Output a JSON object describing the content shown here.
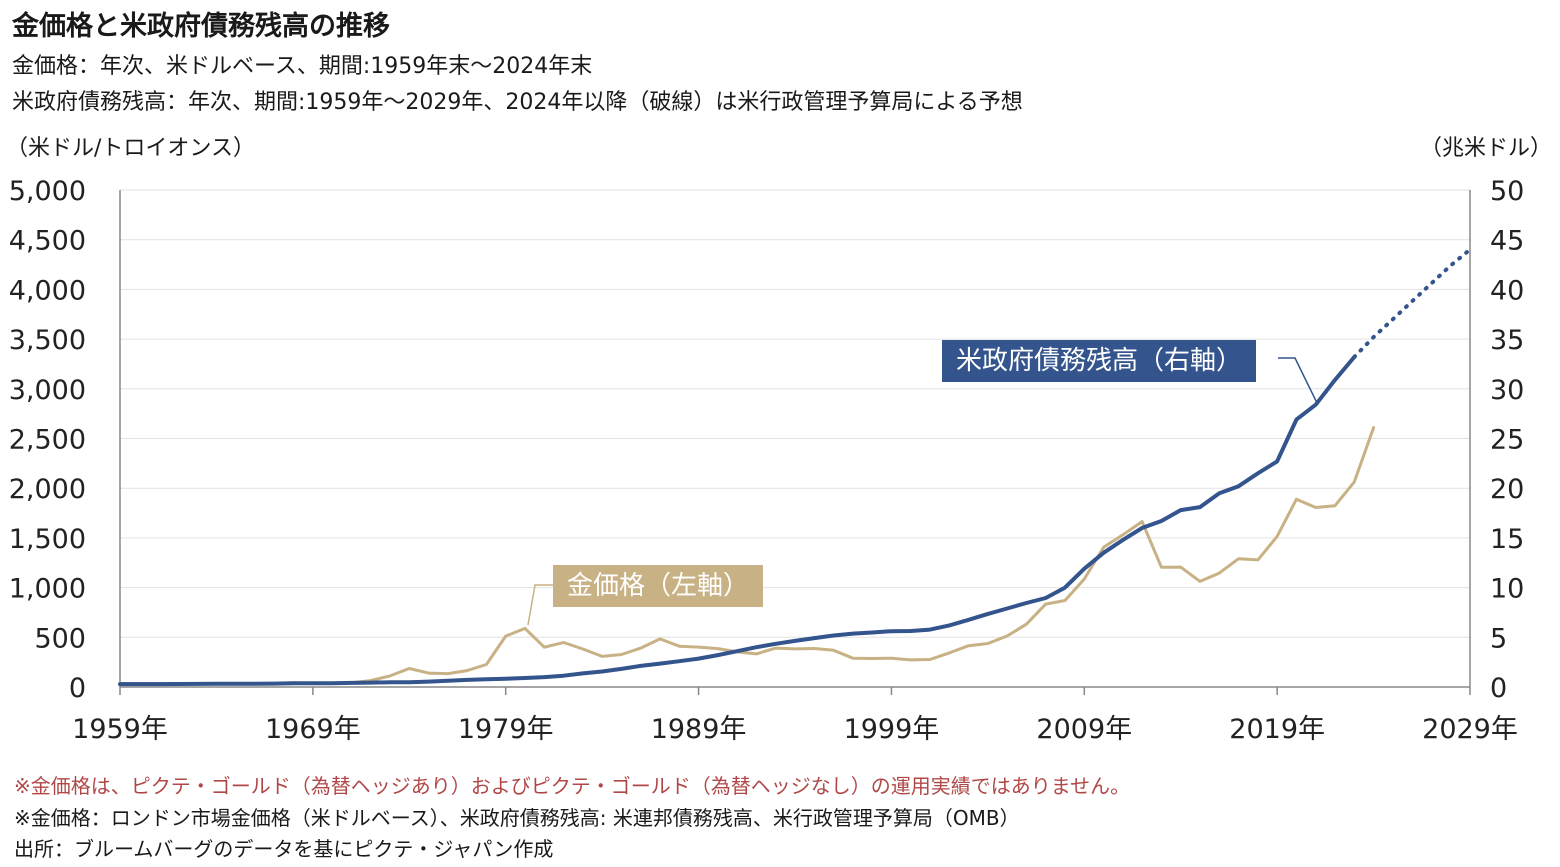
{
  "header": {
    "title": "金価格と米政府債務残高の推移",
    "subtitle_gold": "金価格：年次、米ドルベース、期間:1959年末～2024年末",
    "subtitle_debt": "米政府債務残高：年次、期間:1959年～2029年、2024年以降（破線）は米行政管理予算局による予想"
  },
  "axes": {
    "left_unit": "（米ドル/トロイオンス）",
    "right_unit": "（兆米ドル）"
  },
  "labels": {
    "debt": "米政府債務残高（右軸）",
    "gold": "金価格（左軸）"
  },
  "notes": {
    "disclaimer": "※金価格は、ピクテ・ゴールド（為替ヘッジあり）およびピクテ・ゴールド（為替ヘッジなし）の運用実績ではありません。",
    "sources": "※金価格：ロンドン市場金価格（米ドルベース）、米政府債務残高: 米連邦債務残高、米行政管理予算局（OMB）",
    "origin": "出所：ブルームバーグのデータを基にピクテ・ジャパン作成"
  },
  "chart_data": {
    "type": "line",
    "x_label_suffix": "年",
    "x_ticks": [
      1959,
      1969,
      1979,
      1989,
      1999,
      2009,
      2019,
      2029
    ],
    "xlim": [
      1959,
      2029
    ],
    "y_left": {
      "ylim": [
        0,
        5000
      ],
      "ticks": [
        "0",
        "500",
        "1,000",
        "1,500",
        "2,000",
        "2,500",
        "3,000",
        "3,500",
        "4,000",
        "4,500",
        "5,000"
      ]
    },
    "y_right": {
      "ylim": [
        0,
        50
      ],
      "ticks": [
        "0",
        "5",
        "10",
        "15",
        "20",
        "25",
        "30",
        "35",
        "40",
        "45",
        "50"
      ]
    },
    "grid": true,
    "series": [
      {
        "name": "金価格（左軸）",
        "axis": "left",
        "color": "#c8b184",
        "points": [
          [
            1959,
            35
          ],
          [
            1960,
            35
          ],
          [
            1961,
            35
          ],
          [
            1962,
            35
          ],
          [
            1963,
            35
          ],
          [
            1964,
            35
          ],
          [
            1965,
            35
          ],
          [
            1966,
            35
          ],
          [
            1967,
            35
          ],
          [
            1968,
            42
          ],
          [
            1969,
            35
          ],
          [
            1970,
            37
          ],
          [
            1971,
            43
          ],
          [
            1972,
            64
          ],
          [
            1973,
            112
          ],
          [
            1974,
            186
          ],
          [
            1975,
            140
          ],
          [
            1976,
            135
          ],
          [
            1977,
            165
          ],
          [
            1978,
            226
          ],
          [
            1979,
            512
          ],
          [
            1980,
            590
          ],
          [
            1981,
            400
          ],
          [
            1982,
            448
          ],
          [
            1983,
            382
          ],
          [
            1984,
            308
          ],
          [
            1985,
            327
          ],
          [
            1986,
            391
          ],
          [
            1987,
            484
          ],
          [
            1988,
            410
          ],
          [
            1989,
            401
          ],
          [
            1990,
            386
          ],
          [
            1991,
            353
          ],
          [
            1992,
            333
          ],
          [
            1993,
            391
          ],
          [
            1994,
            383
          ],
          [
            1995,
            387
          ],
          [
            1996,
            369
          ],
          [
            1997,
            290
          ],
          [
            1998,
            287
          ],
          [
            1999,
            290
          ],
          [
            2000,
            273
          ],
          [
            2001,
            277
          ],
          [
            2002,
            343
          ],
          [
            2003,
            415
          ],
          [
            2004,
            438
          ],
          [
            2005,
            513
          ],
          [
            2006,
            632
          ],
          [
            2007,
            834
          ],
          [
            2008,
            870
          ],
          [
            2009,
            1087
          ],
          [
            2010,
            1405
          ],
          [
            2011,
            1531
          ],
          [
            2012,
            1664
          ],
          [
            2013,
            1205
          ],
          [
            2014,
            1206
          ],
          [
            2015,
            1062
          ],
          [
            2016,
            1146
          ],
          [
            2017,
            1291
          ],
          [
            2018,
            1279
          ],
          [
            2019,
            1515
          ],
          [
            2020,
            1888
          ],
          [
            2021,
            1806
          ],
          [
            2022,
            1824
          ],
          [
            2023,
            2063
          ],
          [
            2024,
            2610
          ]
        ]
      },
      {
        "name": "米政府債務残高（右軸）",
        "axis": "right",
        "color": "#33548c",
        "points": [
          [
            1959,
            0.29
          ],
          [
            1960,
            0.29
          ],
          [
            1961,
            0.29
          ],
          [
            1962,
            0.3
          ],
          [
            1963,
            0.31
          ],
          [
            1964,
            0.32
          ],
          [
            1965,
            0.32
          ],
          [
            1966,
            0.33
          ],
          [
            1967,
            0.34
          ],
          [
            1968,
            0.37
          ],
          [
            1969,
            0.37
          ],
          [
            1970,
            0.38
          ],
          [
            1971,
            0.41
          ],
          [
            1972,
            0.44
          ],
          [
            1973,
            0.47
          ],
          [
            1974,
            0.48
          ],
          [
            1975,
            0.54
          ],
          [
            1976,
            0.63
          ],
          [
            1977,
            0.71
          ],
          [
            1978,
            0.78
          ],
          [
            1979,
            0.83
          ],
          [
            1980,
            0.91
          ],
          [
            1981,
            1.0
          ],
          [
            1982,
            1.14
          ],
          [
            1983,
            1.37
          ],
          [
            1984,
            1.56
          ],
          [
            1985,
            1.82
          ],
          [
            1986,
            2.12
          ],
          [
            1987,
            2.35
          ],
          [
            1988,
            2.6
          ],
          [
            1989,
            2.86
          ],
          [
            1990,
            3.21
          ],
          [
            1991,
            3.6
          ],
          [
            1992,
            4.0
          ],
          [
            1993,
            4.35
          ],
          [
            1994,
            4.64
          ],
          [
            1995,
            4.92
          ],
          [
            1996,
            5.18
          ],
          [
            1997,
            5.37
          ],
          [
            1998,
            5.48
          ],
          [
            1999,
            5.61
          ],
          [
            2000,
            5.63
          ],
          [
            2001,
            5.77
          ],
          [
            2002,
            6.2
          ],
          [
            2003,
            6.76
          ],
          [
            2004,
            7.35
          ],
          [
            2005,
            7.9
          ],
          [
            2006,
            8.45
          ],
          [
            2007,
            8.95
          ],
          [
            2008,
            10.0
          ],
          [
            2009,
            11.9
          ],
          [
            2010,
            13.5
          ],
          [
            2011,
            14.8
          ],
          [
            2012,
            16.0
          ],
          [
            2013,
            16.7
          ],
          [
            2014,
            17.8
          ],
          [
            2015,
            18.1
          ],
          [
            2016,
            19.5
          ],
          [
            2017,
            20.2
          ],
          [
            2018,
            21.5
          ],
          [
            2019,
            22.7
          ],
          [
            2020,
            26.9
          ],
          [
            2021,
            28.4
          ],
          [
            2022,
            30.9
          ],
          [
            2023,
            33.2
          ]
        ]
      },
      {
        "name": "米政府債務残高（右軸）予想",
        "axis": "right",
        "color": "#33548c",
        "dashed": true,
        "points": [
          [
            2023,
            33.2
          ],
          [
            2024,
            35.2
          ],
          [
            2025,
            37.0
          ],
          [
            2026,
            38.8
          ],
          [
            2027,
            40.6
          ],
          [
            2028,
            42.4
          ],
          [
            2029,
            44.0
          ]
        ]
      }
    ]
  }
}
